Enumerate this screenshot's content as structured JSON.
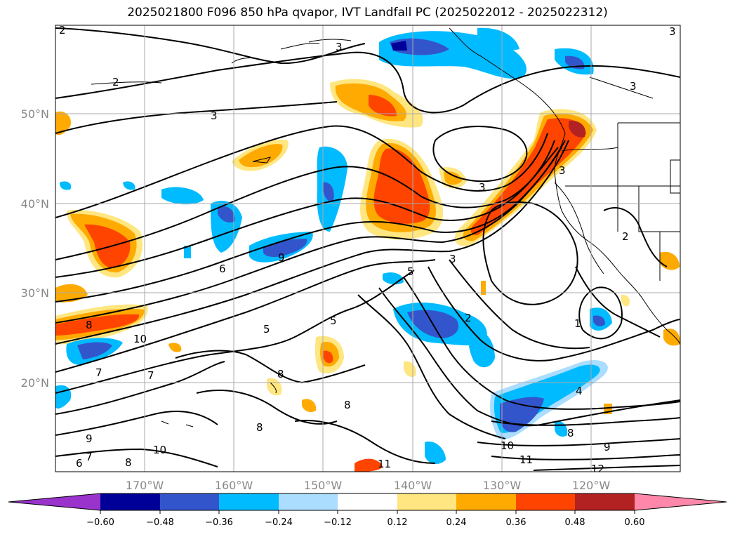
{
  "title": "2025021800 F096 850 hPa qvapor, IVT Landfall PC (2025022012 - 2025022312)",
  "map": {
    "lon_labels": [
      "170°W",
      "160°W",
      "150°W",
      "140°W",
      "130°W",
      "120°W"
    ],
    "lat_labels": [
      "50°N",
      "40°N",
      "30°N",
      "20°N"
    ],
    "contour_labels": [
      "2",
      "3",
      "2",
      "3",
      "3",
      "3",
      "3",
      "3",
      "6",
      "9",
      "5",
      "3",
      "10",
      "8",
      "5",
      "5",
      "7",
      "8",
      "8",
      "8",
      "9",
      "10",
      "7",
      "6",
      "8",
      "10",
      "11",
      "11",
      "9",
      "12",
      "4",
      "8",
      "1",
      "7",
      "2",
      "2"
    ]
  },
  "colorbar": {
    "tick_labels": [
      "−0.60",
      "−0.48",
      "−0.36",
      "−0.24",
      "−0.12",
      "0.12",
      "0.24",
      "0.36",
      "0.48",
      "0.60"
    ],
    "colors": [
      "#9933cc",
      "#000099",
      "#3355cc",
      "#00bbff",
      "#aaddff",
      "#ffffff",
      "#ffe680",
      "#ffaa00",
      "#ff4400",
      "#b22222",
      "#ff88aa"
    ]
  }
}
